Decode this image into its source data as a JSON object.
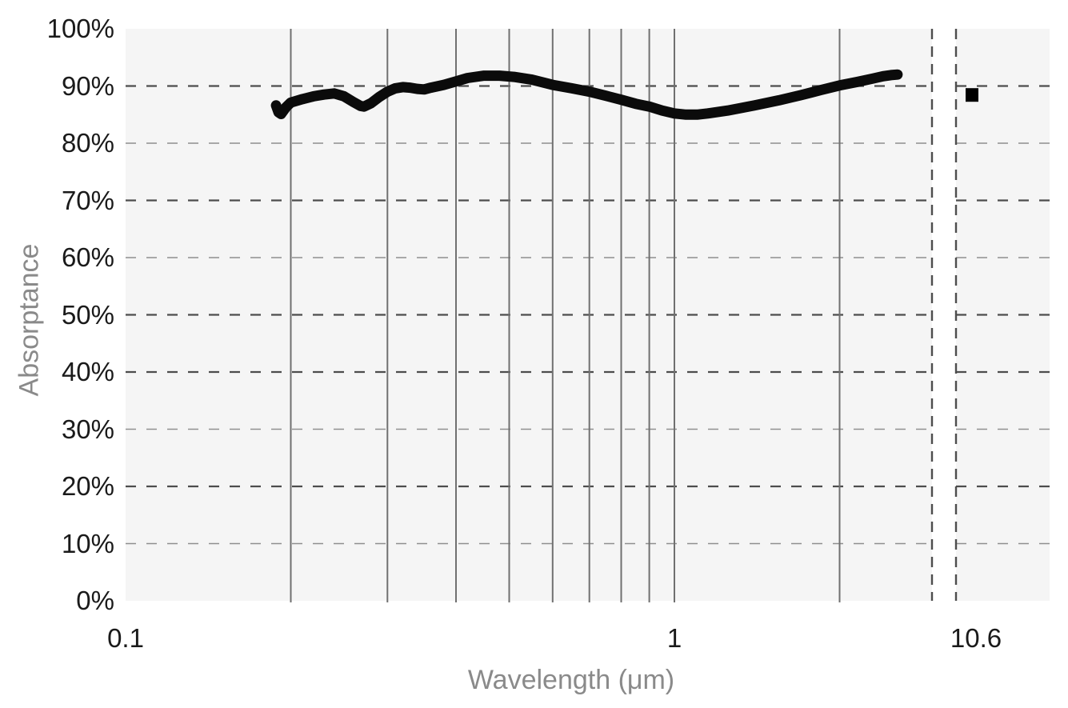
{
  "chart_data": {
    "type": "line",
    "title": "",
    "xlabel": "Wavelength (μm)",
    "ylabel": "Absorptance",
    "x_scale": "log",
    "ylim": [
      0,
      100
    ],
    "x_axis_break": {
      "between_um": [
        2.95,
        10.6
      ],
      "style": "dashed-gap"
    },
    "x_tick_labels": [
      {
        "label": "0.1",
        "um": 0.1
      },
      {
        "label": "1",
        "um": 1.0
      },
      {
        "label": "10.6",
        "um": 10.6
      }
    ],
    "y_tick_labels": [
      "0%",
      "10%",
      "20%",
      "30%",
      "40%",
      "50%",
      "60%",
      "70%",
      "80%",
      "90%",
      "100%"
    ],
    "grid": {
      "horizontal_dashed_percents": [
        10,
        20,
        30,
        40,
        50,
        60,
        70,
        80,
        90
      ],
      "horizontal_bold_percents": [
        20,
        40,
        50,
        70,
        90
      ],
      "horizontal_light_percents": [
        10,
        30,
        60,
        80
      ],
      "vertical_solid_um": [
        0.2,
        0.3,
        0.4,
        0.5,
        0.6,
        0.7,
        0.8,
        0.9,
        1.0,
        2.0
      ]
    },
    "series": [
      {
        "name": "absorptance-spectrum",
        "type": "line",
        "points": [
          [
            0.188,
            86.6
          ],
          [
            0.19,
            85.4
          ],
          [
            0.192,
            85.1
          ],
          [
            0.196,
            86.3
          ],
          [
            0.2,
            87.1
          ],
          [
            0.21,
            87.7
          ],
          [
            0.22,
            88.2
          ],
          [
            0.23,
            88.5
          ],
          [
            0.24,
            88.7
          ],
          [
            0.25,
            88.2
          ],
          [
            0.26,
            87.2
          ],
          [
            0.268,
            86.5
          ],
          [
            0.272,
            86.4
          ],
          [
            0.28,
            87.0
          ],
          [
            0.29,
            88.1
          ],
          [
            0.3,
            89.0
          ],
          [
            0.31,
            89.6
          ],
          [
            0.32,
            89.8
          ],
          [
            0.33,
            89.7
          ],
          [
            0.34,
            89.5
          ],
          [
            0.35,
            89.4
          ],
          [
            0.36,
            89.7
          ],
          [
            0.38,
            90.2
          ],
          [
            0.4,
            90.8
          ],
          [
            0.42,
            91.4
          ],
          [
            0.45,
            91.8
          ],
          [
            0.48,
            91.8
          ],
          [
            0.51,
            91.6
          ],
          [
            0.55,
            91.1
          ],
          [
            0.6,
            90.2
          ],
          [
            0.65,
            89.6
          ],
          [
            0.7,
            89.0
          ],
          [
            0.75,
            88.3
          ],
          [
            0.8,
            87.6
          ],
          [
            0.85,
            86.9
          ],
          [
            0.9,
            86.4
          ],
          [
            0.95,
            85.7
          ],
          [
            1.0,
            85.2
          ],
          [
            1.05,
            85.0
          ],
          [
            1.1,
            85.0
          ],
          [
            1.15,
            85.2
          ],
          [
            1.25,
            85.7
          ],
          [
            1.4,
            86.6
          ],
          [
            1.55,
            87.5
          ],
          [
            1.7,
            88.4
          ],
          [
            1.85,
            89.3
          ],
          [
            2.0,
            90.1
          ],
          [
            2.15,
            90.7
          ],
          [
            2.3,
            91.3
          ],
          [
            2.4,
            91.7
          ],
          [
            2.48,
            91.9
          ],
          [
            2.55,
            92.0
          ]
        ]
      },
      {
        "name": "absorptance-at-10.6um",
        "type": "square-marker",
        "um": 10.6,
        "percent": 88.5
      }
    ],
    "colors": {
      "plot_background": "#f5f5f5",
      "curve": "#0b0b0b",
      "marker": "#000000",
      "grid_dashed_bold": "#4d4d4d",
      "grid_dashed_light": "#8f8f8f",
      "grid_vertical": "#707070",
      "break_line": "#4d4d4d",
      "tick_text": "#1a1a1a",
      "axis_title_text": "#8a8a8a"
    }
  }
}
